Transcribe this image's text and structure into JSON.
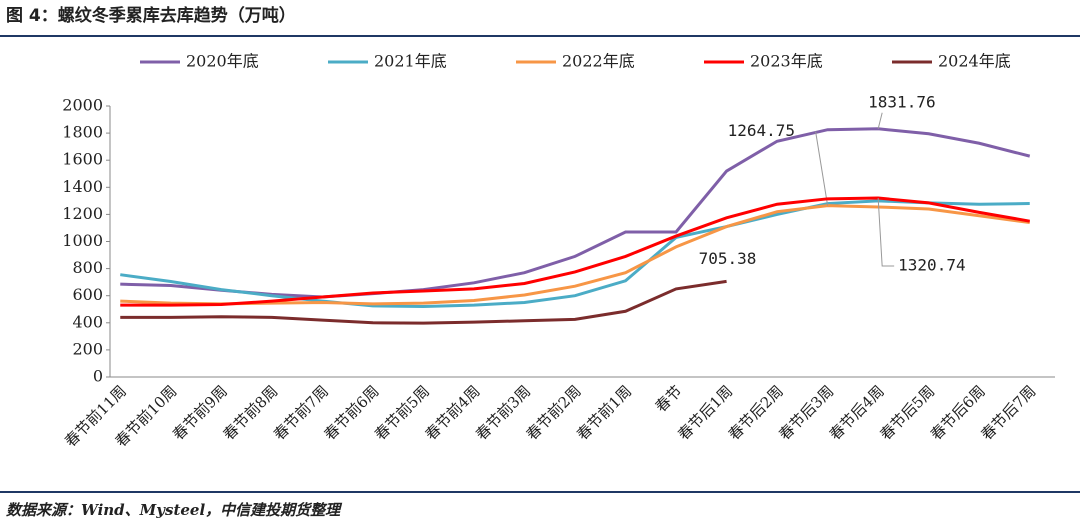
{
  "page": {
    "title": "图 4：螺纹冬季累库去库趋势（万吨）",
    "source": "数据来源：Wind、Mysteel，中信建投期货整理"
  },
  "chart_data": {
    "type": "line",
    "categories": [
      "春节前11周",
      "春节前10周",
      "春节前9周",
      "春节前8周",
      "春节前7周",
      "春节前6周",
      "春节前5周",
      "春节前4周",
      "春节前3周",
      "春节前2周",
      "春节前1周",
      "春节",
      "春节后1周",
      "春节后2周",
      "春节后3周",
      "春节后4周",
      "春节后5周",
      "春节后6周",
      "春节后7周"
    ],
    "ylim": [
      0,
      2000
    ],
    "yticks": [
      0,
      200,
      400,
      600,
      800,
      1000,
      1200,
      1400,
      1600,
      1800,
      2000
    ],
    "legend": "top",
    "series": [
      {
        "name": "2020年底",
        "color": "#7f5fa8",
        "values": [
          685,
          675,
          640,
          610,
          590,
          615,
          645,
          695,
          770,
          890,
          1070,
          1070,
          1520,
          1740,
          1825,
          1831.76,
          1795,
          1725,
          1630
        ],
        "label_index": 15
      },
      {
        "name": "2021年底",
        "color": "#4bacc6",
        "values": [
          755,
          705,
          645,
          600,
          560,
          525,
          520,
          530,
          550,
          600,
          710,
          1030,
          1110,
          1200,
          1280,
          1300,
          1285,
          1275,
          1280
        ]
      },
      {
        "name": "2022年底",
        "color": "#f79646",
        "values": [
          560,
          545,
          540,
          545,
          550,
          540,
          545,
          565,
          605,
          670,
          770,
          960,
          1110,
          1220,
          1264.75,
          1255,
          1240,
          1190,
          1140
        ],
        "label_index": 14
      },
      {
        "name": "2023年底",
        "color": "#ff0000",
        "values": [
          530,
          530,
          535,
          560,
          590,
          620,
          635,
          650,
          690,
          775,
          890,
          1040,
          1175,
          1275,
          1315,
          1320.74,
          1285,
          1215,
          1150
        ],
        "label_index": 15
      },
      {
        "name": "2024年底",
        "color": "#7b2c2c",
        "values": [
          440,
          440,
          445,
          440,
          420,
          400,
          398,
          405,
          415,
          425,
          485,
          650,
          705.38,
          null,
          null,
          null,
          null,
          null,
          null
        ],
        "label_index": 12
      }
    ]
  }
}
